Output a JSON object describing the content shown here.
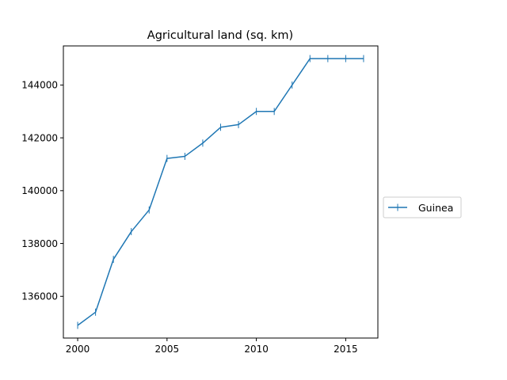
{
  "chart_data": {
    "type": "line",
    "title": "Agricultural land (sq. km)",
    "xlabel": "",
    "ylabel": "",
    "x": [
      2000,
      2001,
      2002,
      2003,
      2004,
      2005,
      2006,
      2007,
      2008,
      2009,
      2010,
      2011,
      2012,
      2013,
      2014,
      2015,
      2016
    ],
    "series": [
      {
        "name": "Guinea",
        "color": "#1f77b4",
        "values": [
          134900,
          135400,
          137400,
          138450,
          139270,
          141220,
          141300,
          141800,
          142400,
          142500,
          143000,
          143000,
          144000,
          145000,
          145000,
          145000,
          145000
        ]
      }
    ],
    "xlim": [
      1999.2,
      2016.8
    ],
    "ylim": [
      134420,
      145480
    ],
    "xticks": [
      2000,
      2005,
      2010,
      2015
    ],
    "yticks": [
      136000,
      138000,
      140000,
      142000,
      144000
    ],
    "grid": false,
    "legend_position": "outside-right"
  }
}
